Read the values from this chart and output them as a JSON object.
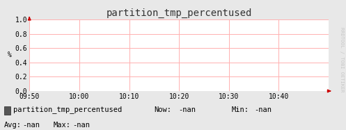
{
  "title": "partition_tmp_percentused",
  "ylabel": "%",
  "xlim_labels": [
    "09:50",
    "10:00",
    "10:10",
    "10:20",
    "10:30",
    "10:40"
  ],
  "ylim": [
    0.0,
    1.0
  ],
  "yticks": [
    0.0,
    0.2,
    0.4,
    0.6,
    0.8,
    1.0
  ],
  "ytick_labels": [
    "0.0",
    "0.2",
    "0.4",
    "0.6",
    "0.8",
    "1.0"
  ],
  "bg_color": "#e8e8e8",
  "plot_bg_color": "#ffffff",
  "grid_color": "#ffb0b0",
  "arrow_color": "#cc0000",
  "legend_box_color": "#555555",
  "watermark": "RRDTOOL / TOBI OETIKER",
  "watermark_color": "#c8c8c8",
  "legend_label": "partition_tmp_percentused",
  "title_fontsize": 10,
  "axis_fontsize": 7,
  "footer_fontsize": 7.5
}
